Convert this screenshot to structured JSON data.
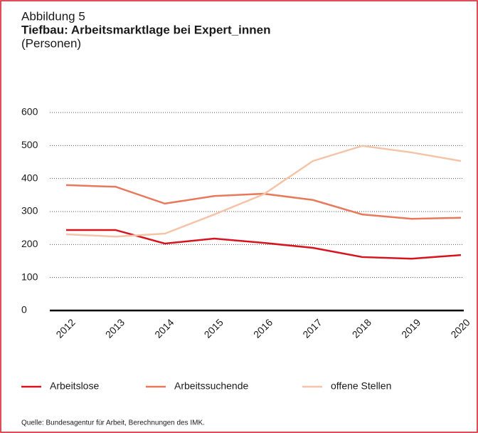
{
  "chart_data": {
    "type": "line",
    "label": "Abbildung 5",
    "title": "Tiefbau: Arbeitsmarktlage bei Expert_innen",
    "subtitle": "(Personen)",
    "source": "Quelle: Bundesagentur für Arbeit, Berechnungen des IMK.",
    "categories": [
      "2012",
      "2013",
      "2014",
      "2015",
      "2016",
      "2017",
      "2018",
      "2019",
      "2020"
    ],
    "series": [
      {
        "name": "Arbeitslose",
        "color": "#d7141e",
        "values": [
          244,
          244,
          203,
          218,
          205,
          190,
          162,
          157,
          168
        ]
      },
      {
        "name": "Arbeitssuchende",
        "color": "#e8795a",
        "values": [
          380,
          375,
          324,
          347,
          354,
          335,
          291,
          278,
          281
        ]
      },
      {
        "name": "offene Stellen",
        "color": "#f5c4a8",
        "values": [
          231,
          224,
          233,
          291,
          352,
          453,
          499,
          479,
          453
        ]
      }
    ],
    "ylim": [
      0,
      600
    ],
    "yticks": [
      0,
      100,
      200,
      300,
      400,
      500,
      600
    ],
    "grid": true,
    "legend": "bottom"
  }
}
